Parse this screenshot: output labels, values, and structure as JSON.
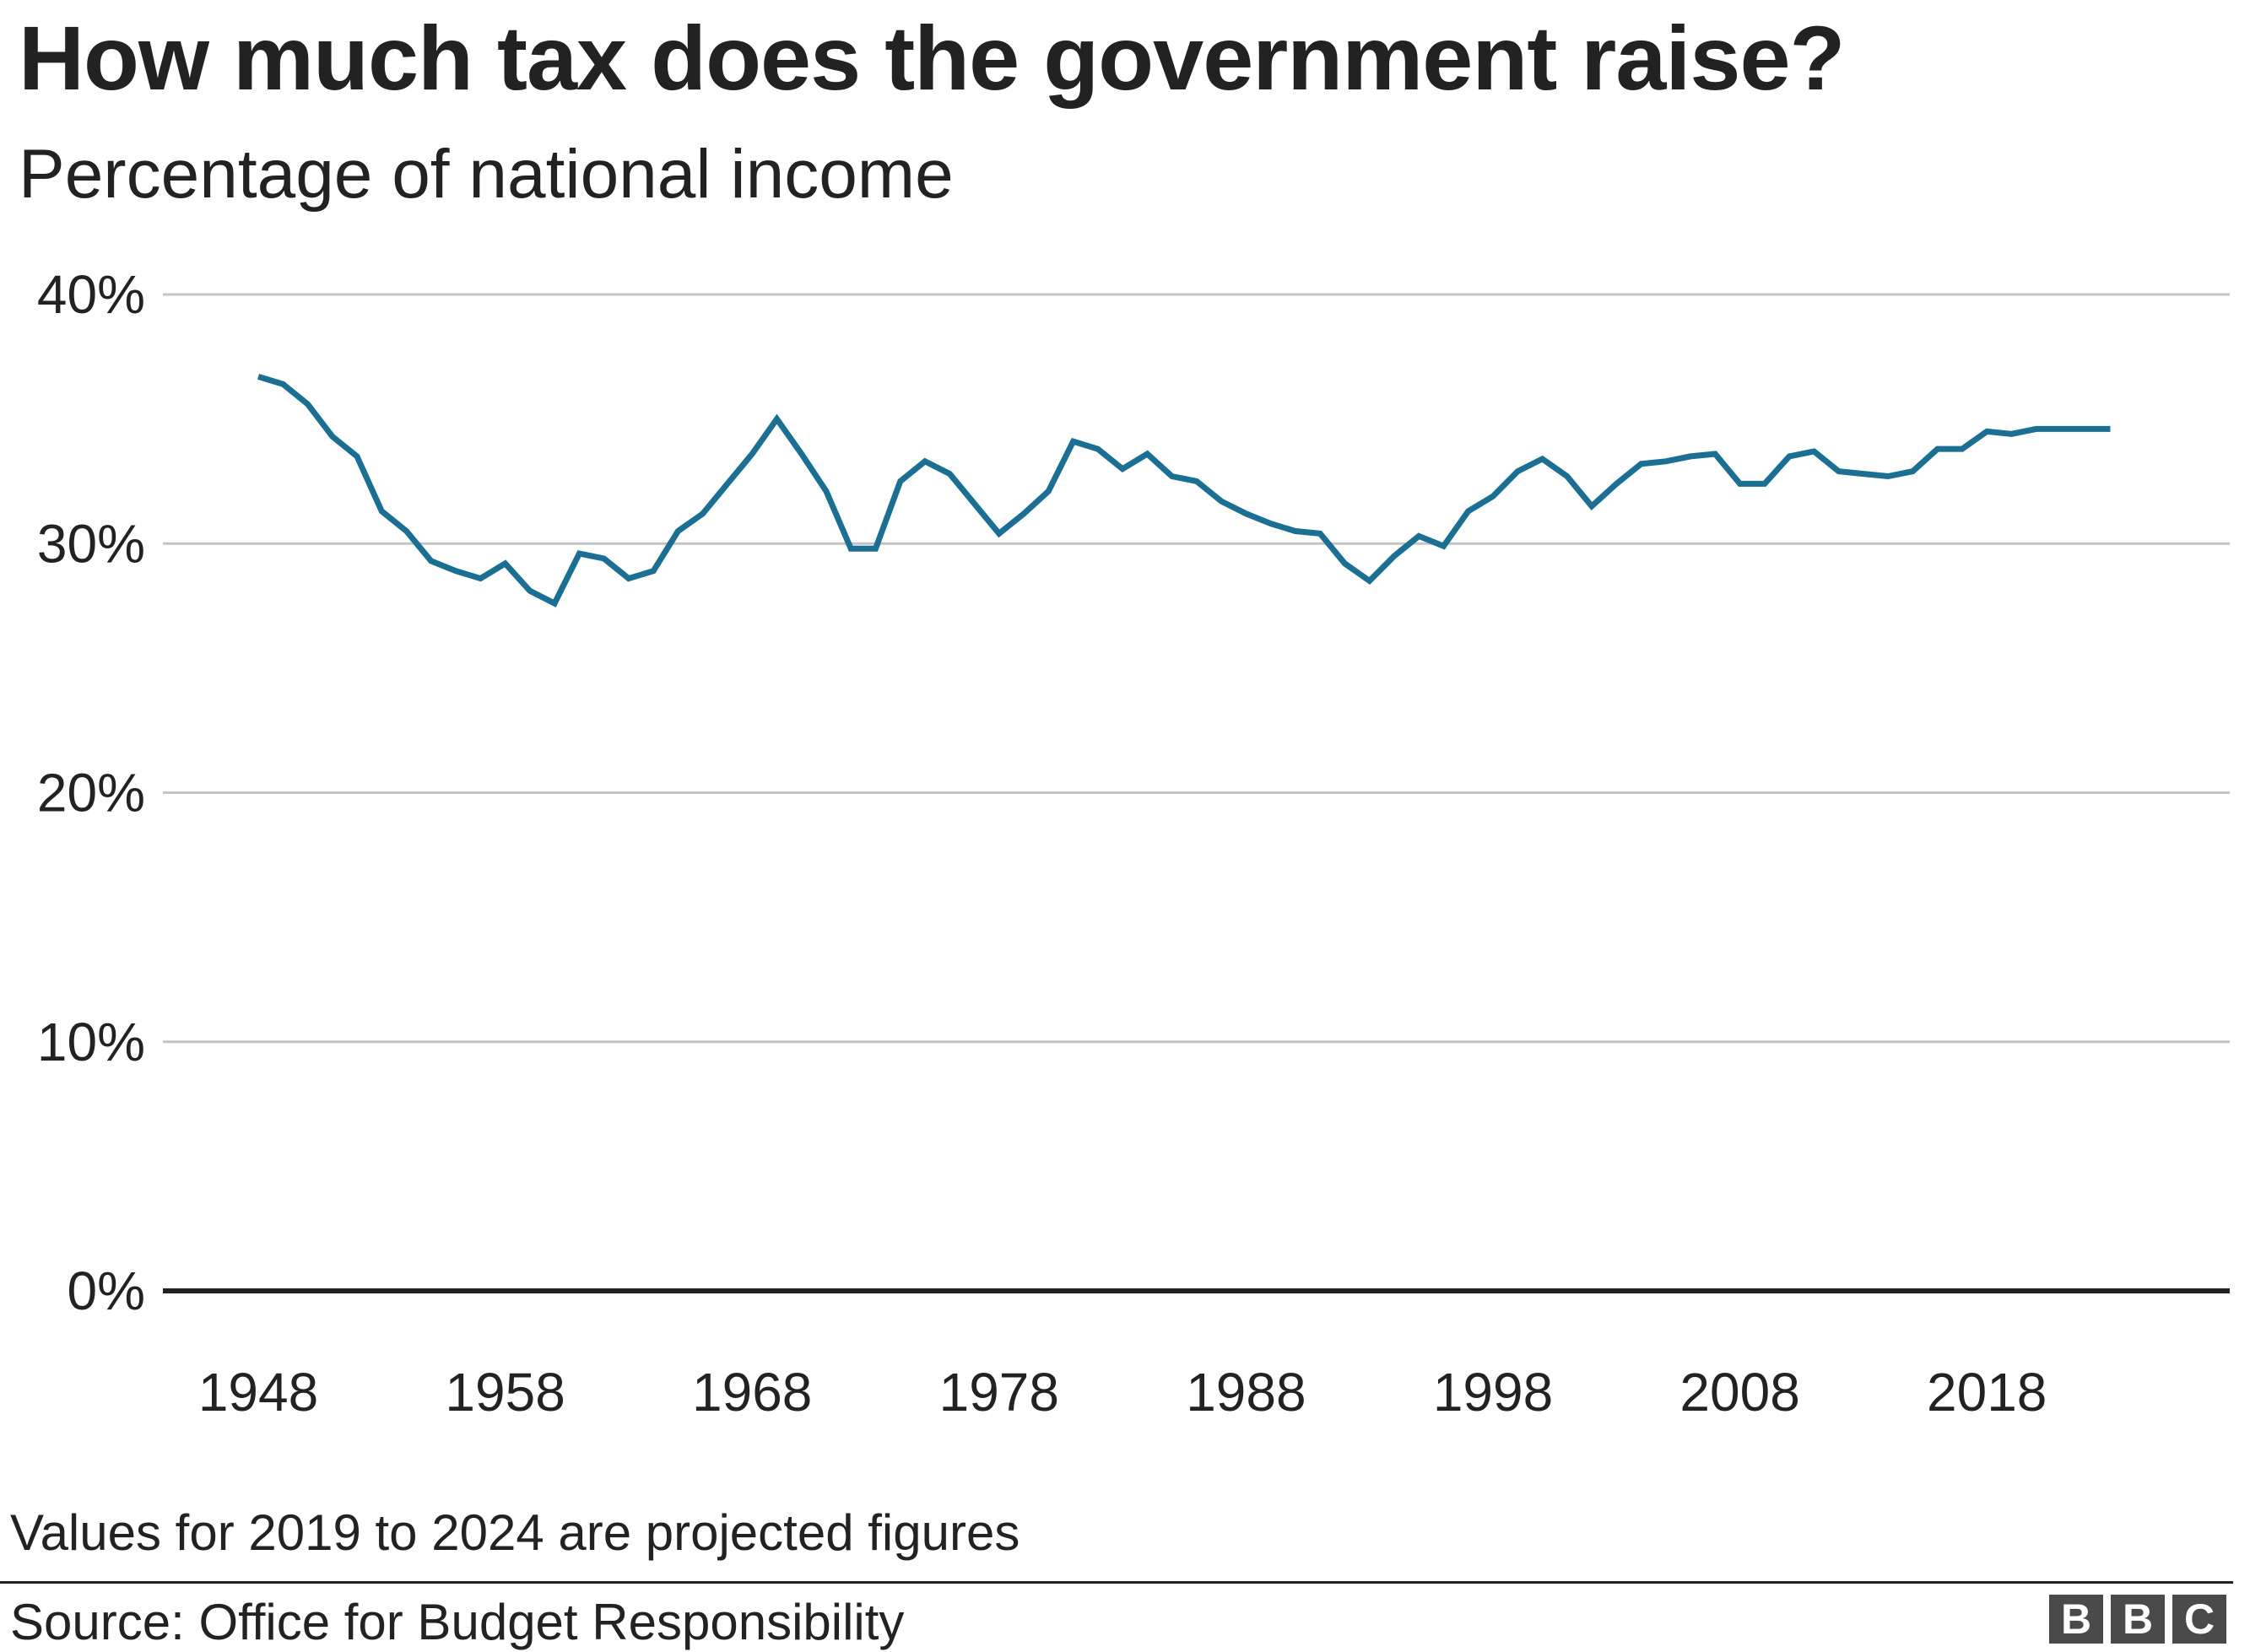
{
  "chart_data": {
    "type": "line",
    "title": "How much tax does the government raise?",
    "subtitle": "Percentage of national income",
    "xlabel": "",
    "ylabel": "",
    "ylim": [
      0,
      40
    ],
    "yticks": [
      "0%",
      "10%",
      "20%",
      "30%",
      "40%"
    ],
    "ytick_values": [
      0,
      10,
      20,
      30,
      40
    ],
    "xticks": [
      "1948",
      "1958",
      "1968",
      "1978",
      "1988",
      "1998",
      "2008",
      "2018"
    ],
    "grid": true,
    "line_color": "#1a6f93",
    "x": [
      1948,
      1949,
      1950,
      1951,
      1952,
      1953,
      1954,
      1955,
      1956,
      1957,
      1958,
      1959,
      1960,
      1961,
      1962,
      1963,
      1964,
      1965,
      1966,
      1967,
      1968,
      1969,
      1970,
      1971,
      1972,
      1973,
      1974,
      1975,
      1976,
      1977,
      1978,
      1979,
      1980,
      1981,
      1982,
      1983,
      1984,
      1985,
      1986,
      1987,
      1988,
      1989,
      1990,
      1991,
      1992,
      1993,
      1994,
      1995,
      1996,
      1997,
      1998,
      1999,
      2000,
      2001,
      2002,
      2003,
      2004,
      2005,
      2006,
      2007,
      2008,
      2009,
      2010,
      2011,
      2012,
      2013,
      2014,
      2015,
      2016,
      2017,
      2018,
      2019,
      2020,
      2021,
      2022,
      2023
    ],
    "values": [
      36.7,
      36.4,
      35.6,
      34.3,
      33.5,
      31.3,
      30.5,
      29.3,
      28.9,
      28.6,
      29.2,
      28.1,
      27.6,
      29.6,
      29.4,
      28.6,
      28.9,
      30.5,
      31.2,
      32.4,
      33.6,
      35.0,
      33.6,
      32.1,
      29.8,
      29.8,
      32.5,
      33.3,
      32.8,
      31.6,
      30.4,
      31.2,
      32.1,
      34.1,
      33.8,
      33.0,
      33.6,
      32.7,
      32.5,
      31.7,
      31.2,
      30.8,
      30.5,
      30.4,
      29.2,
      28.5,
      29.5,
      30.3,
      29.9,
      31.3,
      31.9,
      32.9,
      33.4,
      32.7,
      31.5,
      32.4,
      33.2,
      33.3,
      33.5,
      33.6,
      32.4,
      32.4,
      33.5,
      33.7,
      32.9,
      32.8,
      32.7,
      32.9,
      33.8,
      33.8,
      34.5,
      34.4,
      34.6,
      34.6,
      34.6,
      34.6
    ]
  },
  "note": "Values for 2019 to 2024 are projected figures",
  "source": "Source: Office for Budget Responsibility",
  "logo": {
    "text": "BBC",
    "letters": [
      "B",
      "B",
      "C"
    ]
  }
}
